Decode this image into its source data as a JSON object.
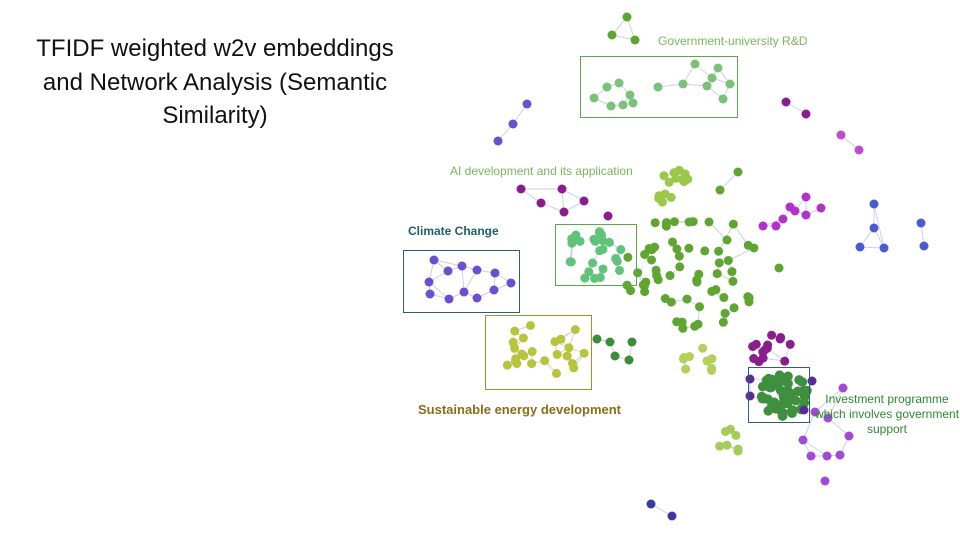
{
  "title": "TFIDF weighted w2v embeddings and Network Analysis (Semantic Similarity)",
  "labels": {
    "gov_rd": "Government-university R&D",
    "ai": "AI development and its application",
    "climate": "Climate Change",
    "sustainable": "Sustainable energy development",
    "investment": "Investment programme which involves government support"
  },
  "colors": {
    "purple": "#8a1c8e",
    "violet": "#6a4fcf",
    "green_light": "#7ac27a",
    "green_mid": "#5fa52f",
    "green_dark": "#3e8f3e",
    "yellow_green": "#b8c43c",
    "lime": "#a4cc5a",
    "blue": "#4a5ad1",
    "magenta": "#c04ad1"
  }
}
